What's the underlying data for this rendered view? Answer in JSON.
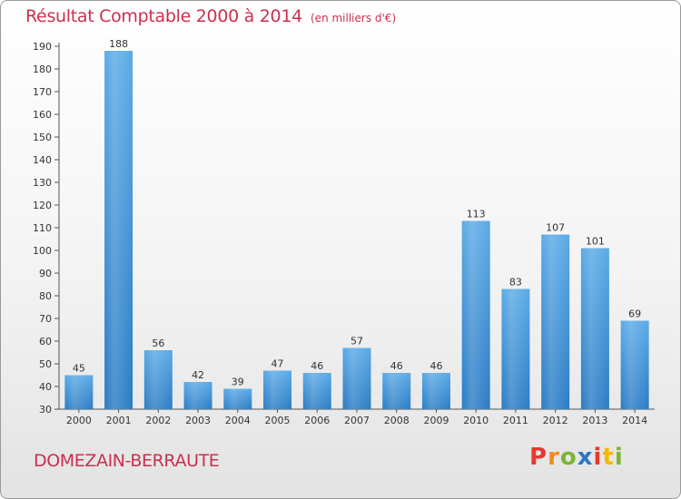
{
  "header": {
    "title": "Résultat Comptable 2000 à 2014",
    "subtitle": "(en milliers d'€)"
  },
  "footer": {
    "commune": "DOMEZAIN-BERRAUTE",
    "logo_letters": [
      "P",
      "r",
      "o",
      "x",
      "i",
      "t",
      "i"
    ],
    "logo_colors": [
      "#e8392f",
      "#f28c1e",
      "#7bb534",
      "#2b78c2",
      "#e8392f",
      "#f5b800",
      "#7bb534"
    ]
  },
  "colors": {
    "title": "#cc2f4e",
    "bar_light": "#5aaae6",
    "bar_dark": "#2b7cc4",
    "axis": "#555555",
    "text": "#333333"
  },
  "chart_data": {
    "type": "bar",
    "title": "Résultat Comptable 2000 à 2014",
    "xlabel": "",
    "ylabel": "",
    "categories": [
      "2000",
      "2001",
      "2002",
      "2003",
      "2004",
      "2005",
      "2006",
      "2007",
      "2008",
      "2009",
      "2010",
      "2011",
      "2012",
      "2013",
      "2014"
    ],
    "values": [
      45,
      188,
      56,
      42,
      39,
      47,
      46,
      57,
      46,
      46,
      113,
      83,
      107,
      101,
      69
    ],
    "ylim": [
      30,
      190
    ],
    "yticks": [
      30,
      40,
      50,
      60,
      70,
      80,
      90,
      100,
      110,
      120,
      130,
      140,
      150,
      160,
      170,
      180,
      190
    ],
    "grid": false
  }
}
